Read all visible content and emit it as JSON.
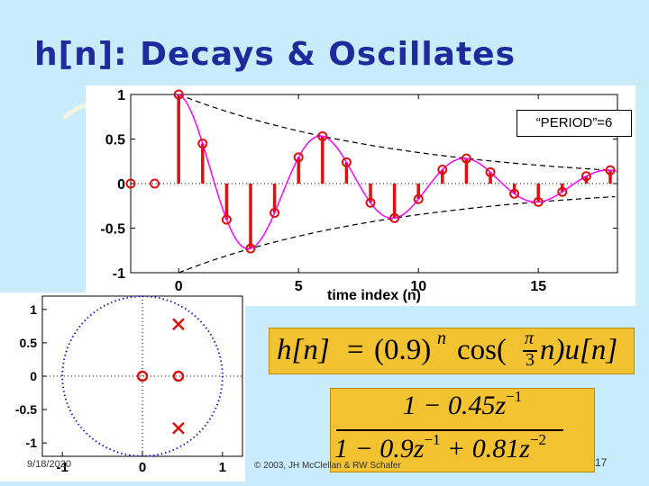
{
  "slide": {
    "title": "h[n]: Decays & Oscillates",
    "date": "9/18/2020",
    "copyright": "© 2003, JH McClellan & RW Schafer",
    "page_number": "17"
  },
  "chart_data": [
    {
      "type": "stem",
      "xlabel": "time index (n)",
      "annotation": "“PERIOD”=6",
      "xlim": [
        -2,
        18.3
      ],
      "ylim": [
        -1,
        1
      ],
      "xticks": [
        0,
        5,
        10,
        15
      ],
      "yticks": [
        1,
        0.5,
        0,
        -0.5,
        -1
      ],
      "ytick_labels": [
        "1",
        "0.5",
        "0",
        "-0.5",
        "-1"
      ],
      "n": [
        -2,
        -1,
        0,
        1,
        2,
        3,
        4,
        5,
        6,
        7,
        8,
        9,
        10,
        11,
        12,
        13,
        14,
        15,
        16,
        17,
        18
      ],
      "values": [
        0,
        0,
        1.0,
        0.45,
        -0.405,
        -0.729,
        -0.328,
        0.295,
        0.531,
        0.239,
        -0.215,
        -0.387,
        -0.174,
        0.157,
        0.282,
        0.127,
        -0.114,
        -0.206,
        -0.093,
        0.083,
        0.15
      ],
      "envelope": "±0.9^n",
      "series_color": "#dd1111",
      "envelope_color": "#000000",
      "interp_color": "#ff00ff",
      "grid": false
    },
    {
      "type": "pole-zero",
      "xlim": [
        -1.25,
        1.25
      ],
      "ylim": [
        -1.2,
        1.2
      ],
      "xticks": [
        -1,
        0,
        1
      ],
      "xtick_labels": [
        "-1",
        "0",
        "1"
      ],
      "yticks": [
        1,
        0.5,
        0,
        -0.5,
        -1
      ],
      "ytick_labels": [
        "1",
        "0.5",
        "0",
        "-0.5",
        "-1"
      ],
      "unit_circle": true,
      "zeros": [
        [
          0,
          0
        ],
        [
          0.45,
          0
        ]
      ],
      "poles": [
        [
          0.45,
          0.779
        ],
        [
          0.45,
          -0.779
        ]
      ],
      "marker_color": "#dd1111",
      "circle_color": "#2222cc"
    }
  ],
  "formulas": {
    "hn": {
      "lhs": "h[n]",
      "eq": "=",
      "base": "(0.9)",
      "exp": "n",
      "cos": "cos(",
      "pi": "π",
      "three": "3",
      "tail": "n)u[n]"
    },
    "hz": {
      "num": "1 − 0.45z",
      "num_exp": "−1",
      "den_a": "1 − 0.9z",
      "den_a_exp": "−1",
      "den_b": " + 0.81z",
      "den_b_exp": "−2"
    },
    "box_color": "#f2c230"
  }
}
